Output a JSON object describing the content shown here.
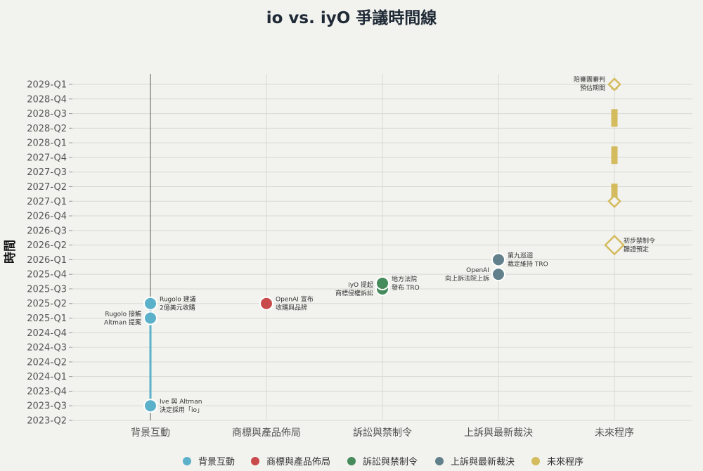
{
  "title": "io vs. iyO 爭議時間線",
  "chart_data": {
    "type": "scatter",
    "title": "io vs. iyO 爭議時間線",
    "ylabel": "時間",
    "xlabel": "",
    "grid": true,
    "legend_position": "bottom",
    "y_ticks": [
      "2023-Q2",
      "2023-Q3",
      "2023-Q4",
      "2024-Q1",
      "2024-Q2",
      "2024-Q3",
      "2024-Q4",
      "2025-Q1",
      "2025-Q2",
      "2025-Q3",
      "2025-Q4",
      "2026-Q1",
      "2026-Q2",
      "2026-Q3",
      "2026-Q4",
      "2027-Q1",
      "2027-Q2",
      "2027-Q3",
      "2027-Q4",
      "2028-Q1",
      "2028-Q2",
      "2028-Q3",
      "2028-Q4",
      "2029-Q1"
    ],
    "categories": [
      "背景互動",
      "商標與產品佈局",
      "訴訟與禁制令",
      "上訴與最新裁決",
      "未來程序"
    ],
    "series": [
      {
        "name": "背景互動",
        "color": "#5bb1c9",
        "marker": "circle",
        "points": [
          {
            "y": "2023-Q3",
            "label": [
              "Ive 與 Altman",
              "決定採用「io」"
            ],
            "side": "right"
          },
          {
            "y": "2025-Q1",
            "label": [
              "Rugolo 接觸",
              "Altman 提案"
            ],
            "side": "left"
          },
          {
            "y": "2025-Q2",
            "label": [
              "Rugolo 建議",
              "2億美元收購"
            ],
            "side": "right"
          }
        ]
      },
      {
        "name": "商標與產品佈局",
        "color": "#c94a4a",
        "marker": "circle",
        "points": [
          {
            "y": "2025-Q2",
            "label": [
              "OpenAI 宣布",
              "收購與品牌"
            ],
            "side": "right"
          }
        ]
      },
      {
        "name": "訴訟與禁制令",
        "color": "#458b5b",
        "marker": "circle",
        "points": [
          {
            "y": "2025-Q3",
            "label": [
              "iyO 提起",
              "商標侵權訴訟"
            ],
            "side": "left"
          },
          {
            "y": "2025-Q3",
            "label": [
              "地方法院",
              "發布 TRO"
            ],
            "side": "right"
          }
        ]
      },
      {
        "name": "上訴與最新裁決",
        "color": "#62808b",
        "marker": "circle",
        "points": [
          {
            "y": "2025-Q4",
            "label": [
              "OpenAI",
              "向上訴法院上訴"
            ],
            "side": "left"
          },
          {
            "y": "2026-Q1",
            "label": [
              "第九巡迴",
              "裁定維持 TRO"
            ],
            "side": "right"
          }
        ]
      },
      {
        "name": "未來程序",
        "color": "#d4bb5e",
        "marker": "diamond",
        "points": [
          {
            "y": "2026-Q2",
            "label": [
              "初步禁制令",
              "聽證預定"
            ],
            "side": "right"
          },
          {
            "y": "2027-Q1",
            "label": [
              "",
              ""
            ],
            "side": "none"
          },
          {
            "y": "2029-Q1",
            "label": [
              "陪審團審判",
              "預估期間"
            ],
            "side": "left"
          }
        ]
      }
    ],
    "connectors": [
      {
        "category": "背景互動",
        "from": "2023-Q3",
        "to": "2025-Q2",
        "style": "solid"
      },
      {
        "category": "未來程序",
        "from": "2027-Q1",
        "to": "2029-Q1",
        "style": "dashed"
      }
    ],
    "vline": {
      "category": "背景互動"
    }
  }
}
